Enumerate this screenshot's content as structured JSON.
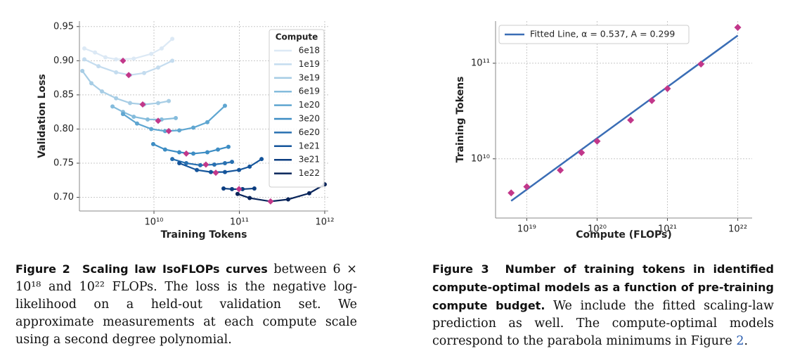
{
  "chart_data": [
    {
      "type": "line",
      "xscale": "log",
      "xlabel": "Training Tokens",
      "ylabel": "Validation Loss",
      "legend_title": "Compute",
      "legend": "upper right",
      "grid": true,
      "marker_color": "#c2378a",
      "xlim": [
        1340000000.0,
        1100000000000.0
      ],
      "ylim": [
        0.68,
        0.958
      ],
      "xticks": [
        {
          "value": 10000000000.0,
          "label": "10¹⁰"
        },
        {
          "value": 100000000000.0,
          "label": "10¹¹"
        },
        {
          "value": 1000000000000.0,
          "label": "10¹²"
        }
      ],
      "yticks": [
        {
          "value": 0.7,
          "label": "0.70"
        },
        0.75,
        {
          "value": 0.8,
          "label": "0.80"
        },
        0.85,
        {
          "value": 0.9,
          "label": "0.90"
        },
        0.95
      ],
      "series": [
        {
          "name": "6e18",
          "color": "#dce9f5",
          "x": [
            1530000000.0,
            2040000000.0,
            2700000000.0,
            3600000000.0,
            5800000000.0,
            9300000000.0,
            12300000000.0,
            16400000000.0
          ],
          "values": [
            0.918,
            0.912,
            0.905,
            0.902,
            0.903,
            0.91,
            0.918,
            0.932
          ],
          "min_x": 4340000000.0,
          "min": 0.9
        },
        {
          "name": "1e19",
          "color": "#c4dcef",
          "x": [
            1530000000.0,
            2240000000.0,
            3600000000.0,
            5250000000.0,
            7670000000.0,
            11200000000.0,
            16400000000.0
          ],
          "values": [
            0.902,
            0.892,
            0.883,
            0.879,
            0.882,
            0.89,
            0.9
          ],
          "min_x": 5060000000.0,
          "min": 0.879
        },
        {
          "name": "3e19",
          "color": "#a7cde5",
          "x": [
            1450000000.0,
            1850000000.0,
            2460000000.0,
            3600000000.0,
            5250000000.0,
            7670000000.0,
            11200000000.0,
            14900000000.0
          ],
          "values": [
            0.885,
            0.867,
            0.855,
            0.845,
            0.838,
            0.836,
            0.838,
            0.841
          ],
          "min_x": 7380000000.0,
          "min": 0.836
        },
        {
          "name": "6e19",
          "color": "#85bcdc",
          "x": [
            3270000000.0,
            4340000000.0,
            5800000000.0,
            8430000000.0,
            12300000000.0,
            18000000000.0
          ],
          "values": [
            0.833,
            0.825,
            0.818,
            0.814,
            0.814,
            0.816
          ],
          "min_x": 11200000000.0,
          "min": 0.812
        },
        {
          "name": "1e20",
          "color": "#5fa6d1",
          "x": [
            4340000000.0,
            6340000000.0,
            9300000000.0,
            13500000000.0,
            19800000000.0,
            28900000000.0,
            42200000000.0,
            67800000000.0
          ],
          "values": [
            0.822,
            0.808,
            0.8,
            0.797,
            0.798,
            0.802,
            0.81,
            0.834
          ],
          "min_x": 14900000000.0,
          "min": 0.797
        },
        {
          "name": "3e20",
          "color": "#3d8dc4",
          "x": [
            9800000000.0,
            13500000000.0,
            19800000000.0,
            28900000000.0,
            42200000000.0,
            56100000000.0,
            74500000000.0
          ],
          "values": [
            0.778,
            0.77,
            0.766,
            0.764,
            0.766,
            0.77,
            0.774
          ],
          "min_x": 23900000000.0,
          "min": 0.764
        },
        {
          "name": "6e20",
          "color": "#2870b1",
          "x": [
            16400000000.0,
            23900000000.0,
            34900000000.0,
            51000000000.0,
            67800000000.0,
            82000000000.0
          ],
          "values": [
            0.756,
            0.75,
            0.747,
            0.748,
            0.75,
            0.752
          ],
          "min_x": 40600000000.0,
          "min": 0.748
        },
        {
          "name": "1e21",
          "color": "#15559b",
          "x": [
            19800000000.0,
            31800000000.0,
            46400000000.0,
            67800000000.0,
            99100000000.0,
            132000000000.0,
            182000000000.0
          ],
          "values": [
            0.75,
            0.74,
            0.737,
            0.737,
            0.74,
            0.745,
            0.756
          ],
          "min_x": 53000000000.0,
          "min": 0.736
        },
        {
          "name": "3e21",
          "color": "#0b3d80",
          "x": [
            65300000000.0,
            82000000000.0,
            109000000000.0,
            150000000000.0
          ],
          "values": [
            0.713,
            0.712,
            0.712,
            0.713
          ],
          "min_x": 99100000000.0,
          "min": 0.712
        },
        {
          "name": "1e22",
          "color": "#08245a",
          "x": [
            95300000000.0,
            132000000000.0,
            232000000000.0,
            373000000000.0,
            659000000000.0,
            1000000000000.0
          ],
          "values": [
            0.705,
            0.699,
            0.694,
            0.697,
            0.706,
            0.719
          ],
          "min_x": 232000000000.0,
          "min": 0.694
        }
      ]
    },
    {
      "type": "scatter",
      "xscale": "log",
      "yscale": "log",
      "xlabel": "Compute (FLOPs)",
      "ylabel": "Training Tokens",
      "grid": true,
      "legend": "upper left",
      "marker_color": "#c2378a",
      "xlim": [
        3.6e+18,
        1.6e+22
      ],
      "ylim": [
        2400000000.0,
        276000000000.0
      ],
      "xticks": [
        {
          "value": 1e+19,
          "label": "10¹⁹"
        },
        {
          "value": 1e+20,
          "label": "10²⁰"
        },
        {
          "value": 1e+21,
          "label": "10²¹"
        },
        {
          "value": 1e+22,
          "label": "10²²"
        }
      ],
      "yticks": [
        {
          "value": 10000000000.0,
          "label": "10¹⁰"
        },
        {
          "value": 100000000000.0,
          "label": "10¹¹"
        }
      ],
      "x": [
        6e+18,
        1e+19,
        3e+19,
        6e+19,
        1e+20,
        3e+20,
        6e+20,
        1e+21,
        3e+21,
        1e+22
      ],
      "values": [
        4400000000.0,
        5100000000.0,
        7600000000.0,
        11600000000.0,
        15300000000.0,
        25400000000.0,
        40700000000.0,
        54300000000.0,
        98000000000.0,
        237000000000.0
      ],
      "fit": {
        "name": "Fitted Line, α = 0.537, A = 0.299",
        "color": "#3a6db5",
        "alpha": 0.537,
        "A": 0.299,
        "xlim": [
          6e+18,
          1e+22
        ]
      }
    }
  ],
  "captions": [
    {
      "label": "Figure 2",
      "title": "Scaling law IsoFLOPs curves",
      "body": "between 6 × 10¹⁸ and 10²² FLOPs. The loss is the negative log-likelihood on a held-out validation set. We approximate measurements at each compute scale using a second degree polynomial."
    },
    {
      "label": "Figure 3",
      "title": "Number of training tokens in identified compute-optimal models as a function of pre-training compute budget.",
      "body": "We include the fitted scaling-law prediction as well. The compute-optimal models correspond to the parabola minimums in Figure",
      "ref": "2",
      "end": "."
    }
  ]
}
